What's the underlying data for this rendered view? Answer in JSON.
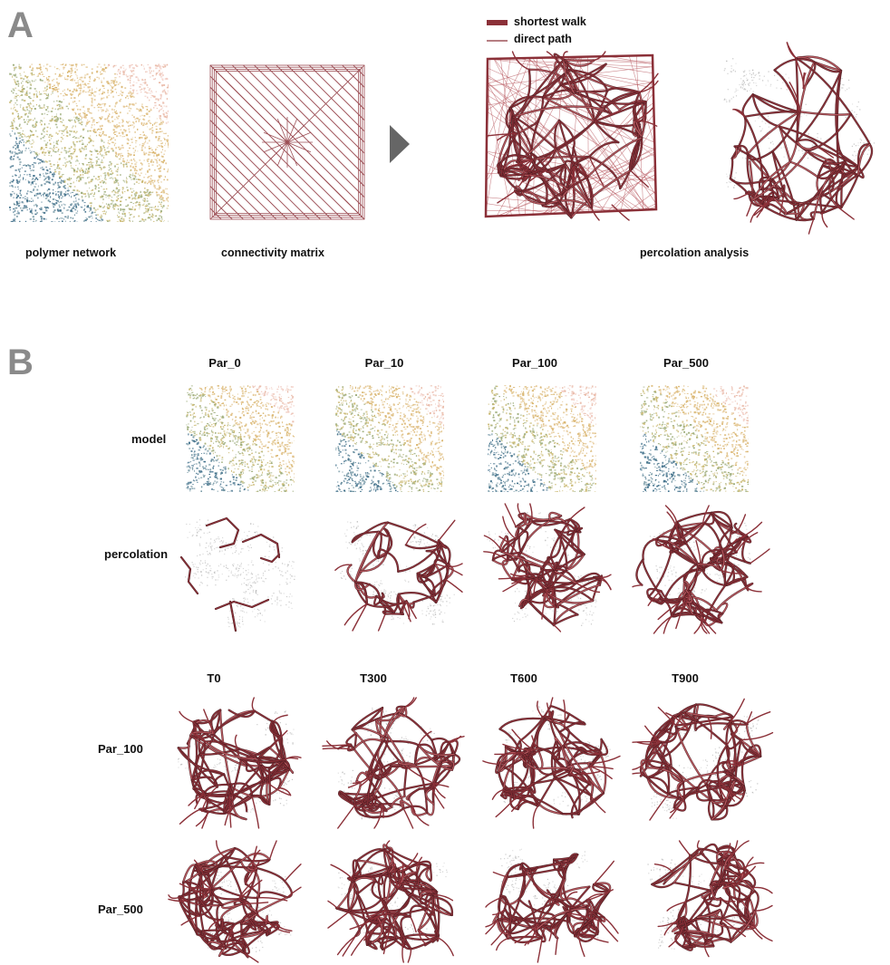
{
  "panelA": {
    "letter": "A",
    "captions": {
      "polymer_network": "polymer network",
      "connectivity_matrix": "connectivity matrix",
      "percolation_analysis": "percolation analysis"
    },
    "legend": {
      "shortest_walk": "shortest walk",
      "direct_path": "direct path"
    },
    "colors": {
      "path": "#8b3038",
      "path_light": "#b8585f",
      "arrow": "#666666"
    }
  },
  "panelB": {
    "letter": "B",
    "grid1": {
      "columns": [
        "Par_0",
        "Par_10",
        "Par_100",
        "Par_500"
      ],
      "rows": [
        "model",
        "percolation"
      ]
    },
    "grid2": {
      "columns": [
        "T0",
        "T300",
        "T600",
        "T900"
      ],
      "rows": [
        "Par_100",
        "Par_500"
      ]
    }
  }
}
